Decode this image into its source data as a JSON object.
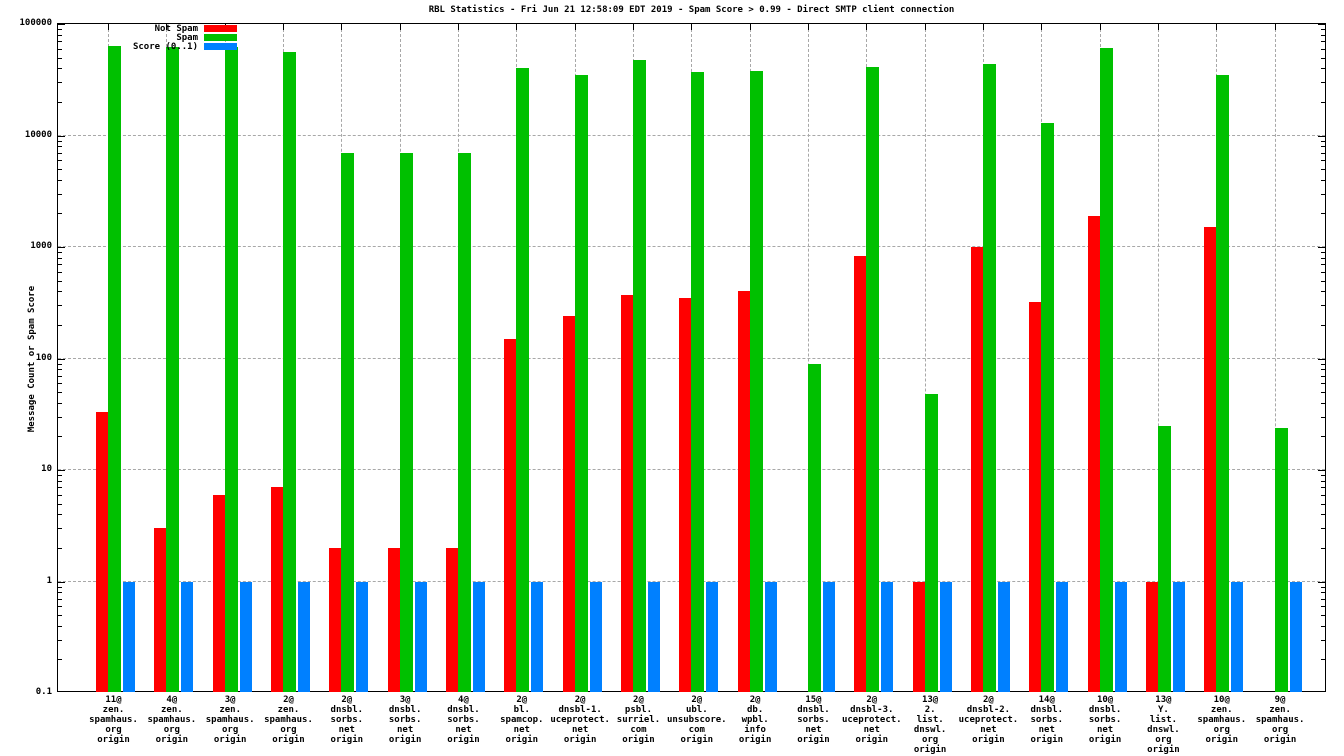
{
  "chart_data": {
    "type": "bar",
    "title": "RBL Statistics - Fri Jun 21 12:58:09 EDT 2019 - Spam Score > 0.99 - Direct SMTP client connection",
    "ylabel": "Message Count or Spam Score",
    "yscale": "log",
    "ylim": [
      0.1,
      100000
    ],
    "grid": true,
    "legend_position": "top-right",
    "yticks": [
      {
        "value": 100000,
        "label": "100000"
      },
      {
        "value": 10000,
        "label": "10000"
      },
      {
        "value": 1000,
        "label": "1000"
      },
      {
        "value": 100,
        "label": "100"
      },
      {
        "value": 10,
        "label": "10"
      },
      {
        "value": 1,
        "label": "1"
      },
      {
        "value": 0.1,
        "label": "0.1"
      }
    ],
    "legend": [
      {
        "label": "Not Spam",
        "color": "#ff0000"
      },
      {
        "label": "Spam",
        "color": "#00c000"
      },
      {
        "label": "Score (0..1)",
        "color": "#0080ff"
      }
    ],
    "categories": [
      [
        "11@",
        "zen.",
        "spamhaus.",
        "org",
        "origin"
      ],
      [
        "4@",
        "zen.",
        "spamhaus.",
        "org",
        "origin"
      ],
      [
        "3@",
        "zen.",
        "spamhaus.",
        "org",
        "origin"
      ],
      [
        "2@",
        "zen.",
        "spamhaus.",
        "org",
        "origin"
      ],
      [
        "2@",
        "dnsbl.",
        "sorbs.",
        "net",
        "origin"
      ],
      [
        "3@",
        "dnsbl.",
        "sorbs.",
        "net",
        "origin"
      ],
      [
        "4@",
        "dnsbl.",
        "sorbs.",
        "net",
        "origin"
      ],
      [
        "2@",
        "bl.",
        "spamcop.",
        "net",
        "origin"
      ],
      [
        "2@",
        "dnsbl-1.",
        "uceprotect.",
        "net",
        "origin"
      ],
      [
        "2@",
        "psbl.",
        "surriel.",
        "com",
        "origin"
      ],
      [
        "2@",
        "ubl.",
        "unsubscore.",
        "com",
        "origin"
      ],
      [
        "2@",
        "db.",
        "wpbl.",
        "info",
        "origin"
      ],
      [
        "15@",
        "dnsbl.",
        "sorbs.",
        "net",
        "origin"
      ],
      [
        "2@",
        "dnsbl-3.",
        "uceprotect.",
        "net",
        "origin"
      ],
      [
        "13@",
        "2.",
        "list.",
        "dnswl.",
        "org",
        "origin"
      ],
      [
        "2@",
        "dnsbl-2.",
        "uceprotect.",
        "net",
        "origin"
      ],
      [
        "14@",
        "dnsbl.",
        "sorbs.",
        "net",
        "origin"
      ],
      [
        "10@",
        "dnsbl.",
        "sorbs.",
        "net",
        "origin"
      ],
      [
        "13@",
        "Y.",
        "list.",
        "dnswl.",
        "org",
        "origin"
      ],
      [
        "10@",
        "zen.",
        "spamhaus.",
        "org",
        "origin"
      ],
      [
        "9@",
        "zen.",
        "spamhaus.",
        "org",
        "origin"
      ]
    ],
    "series": [
      {
        "name": "Not Spam",
        "color": "#ff0000",
        "values": [
          33,
          3,
          6,
          7,
          2,
          2,
          2,
          150,
          240,
          370,
          350,
          400,
          0,
          830,
          1,
          1000,
          320,
          1900,
          1,
          1500,
          0
        ]
      },
      {
        "name": "Spam",
        "color": "#00c000",
        "values": [
          63000,
          62000,
          62000,
          56000,
          7000,
          7000,
          7000,
          40000,
          35000,
          48000,
          37000,
          38000,
          90,
          41000,
          48,
          44000,
          13000,
          61000,
          25,
          35000,
          24
        ]
      },
      {
        "name": "Score (0..1)",
        "color": "#0080ff",
        "values": [
          1,
          1,
          1,
          1,
          1,
          1,
          1,
          1,
          1,
          1,
          1,
          1,
          1,
          1,
          1,
          1,
          1,
          1,
          1,
          1,
          1
        ]
      }
    ]
  }
}
